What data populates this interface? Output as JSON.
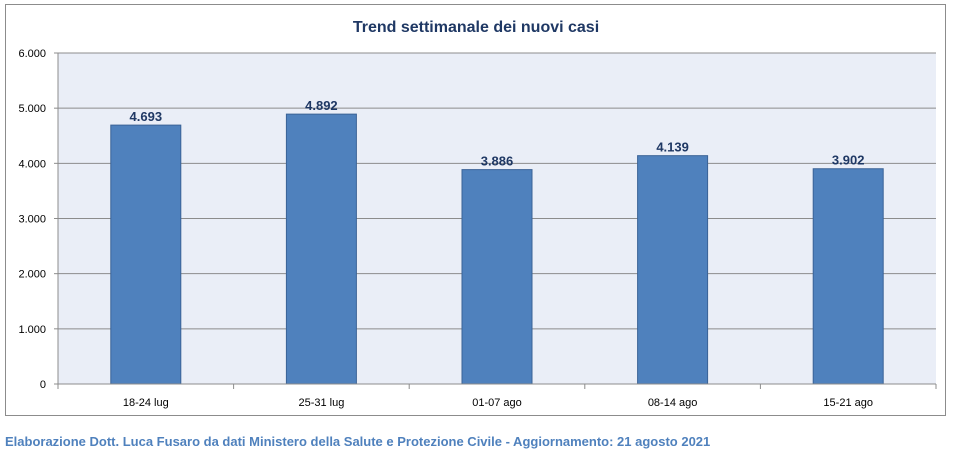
{
  "chart_data": {
    "type": "bar",
    "title": "Trend settimanale dei nuovi casi",
    "categories": [
      "18-24 lug",
      "25-31 lug",
      "01-07 ago",
      "08-14 ago",
      "15-21 ago"
    ],
    "values": [
      4693,
      4892,
      3886,
      4139,
      3902
    ],
    "value_labels": [
      "4.693",
      "4.892",
      "3.886",
      "4.139",
      "3.902"
    ],
    "yticks": [
      0,
      1000,
      2000,
      3000,
      4000,
      5000,
      6000
    ],
    "ytick_labels": [
      "0",
      "1.000",
      "2.000",
      "3.000",
      "4.000",
      "5.000",
      "6.000"
    ],
    "ylim": [
      0,
      6000
    ],
    "grid": true,
    "legend": "none",
    "colors": {
      "bar": "#4f81bd",
      "bar_border": "#3a6296",
      "plot_background": "#eaeef7",
      "gridline": "#8c8c8c",
      "title": "#1f3864",
      "data_label": "#1f3864"
    }
  },
  "footer": {
    "credit": "Elaborazione Dott. Luca Fusaro da dati Ministero della Salute e Protezione Civile - Aggiornamento: 21 agosto 2021"
  }
}
